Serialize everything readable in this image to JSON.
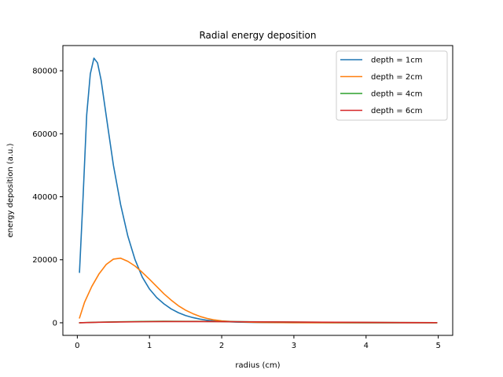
{
  "chart_data": {
    "type": "line",
    "title": "Radial energy deposition",
    "xlabel": "radius (cm)",
    "ylabel": "energy deposition (a.u.)",
    "xlim": [
      -0.2,
      5.2
    ],
    "ylim": [
      -4000,
      88000
    ],
    "xticks": [
      0,
      1,
      2,
      3,
      4,
      5
    ],
    "xtick_labels": [
      "0",
      "1",
      "2",
      "3",
      "4",
      "5"
    ],
    "yticks": [
      0,
      20000,
      40000,
      60000,
      80000
    ],
    "ytick_labels": [
      "0",
      "20000",
      "40000",
      "60000",
      "80000"
    ],
    "grid": false,
    "legend_position": "top-right",
    "series": [
      {
        "name": "depth = 1cm",
        "color": "#1f77b4",
        "x": [
          0.03,
          0.08,
          0.13,
          0.18,
          0.23,
          0.28,
          0.33,
          0.38,
          0.43,
          0.5,
          0.6,
          0.7,
          0.8,
          0.9,
          1.0,
          1.1,
          1.2,
          1.3,
          1.4,
          1.5,
          1.6,
          1.7,
          1.8,
          1.9,
          2.0,
          2.2,
          2.4,
          2.6,
          3.0,
          3.5,
          4.0,
          4.5,
          4.98
        ],
        "y": [
          16000,
          40000,
          66000,
          79000,
          84000,
          82500,
          77000,
          69000,
          61000,
          50000,
          37500,
          27500,
          20000,
          14500,
          10700,
          8000,
          6000,
          4400,
          3200,
          2300,
          1650,
          1150,
          800,
          560,
          400,
          220,
          130,
          80,
          40,
          20,
          10,
          5,
          0
        ]
      },
      {
        "name": "depth = 2cm",
        "color": "#ff7f0e",
        "x": [
          0.03,
          0.1,
          0.2,
          0.3,
          0.4,
          0.5,
          0.6,
          0.7,
          0.8,
          0.9,
          1.0,
          1.1,
          1.2,
          1.3,
          1.4,
          1.5,
          1.6,
          1.7,
          1.8,
          1.9,
          2.0,
          2.2,
          2.5,
          3.0,
          3.5,
          4.0,
          4.5,
          4.98
        ],
        "y": [
          1500,
          6500,
          11500,
          15500,
          18500,
          20200,
          20500,
          19500,
          18000,
          16000,
          13800,
          11500,
          9200,
          7200,
          5400,
          4000,
          2900,
          2000,
          1350,
          900,
          600,
          300,
          120,
          40,
          15,
          5,
          2,
          0
        ]
      },
      {
        "name": "depth = 4cm",
        "color": "#2ca02c",
        "x": [
          0.03,
          0.3,
          0.6,
          0.9,
          1.2,
          1.5,
          1.8,
          2.1,
          2.4,
          2.8,
          3.2,
          3.6,
          4.0,
          4.5,
          4.98
        ],
        "y": [
          0,
          180,
          320,
          420,
          460,
          450,
          420,
          370,
          320,
          250,
          190,
          140,
          100,
          60,
          30
        ]
      },
      {
        "name": "depth = 6cm",
        "color": "#d62728",
        "x": [
          0.03,
          0.3,
          0.6,
          0.9,
          1.2,
          1.5,
          1.8,
          2.1,
          2.4,
          2.8,
          3.2,
          3.6,
          4.0,
          4.5,
          4.98
        ],
        "y": [
          0,
          150,
          260,
          330,
          370,
          380,
          370,
          340,
          300,
          250,
          200,
          160,
          120,
          80,
          50
        ]
      }
    ]
  }
}
